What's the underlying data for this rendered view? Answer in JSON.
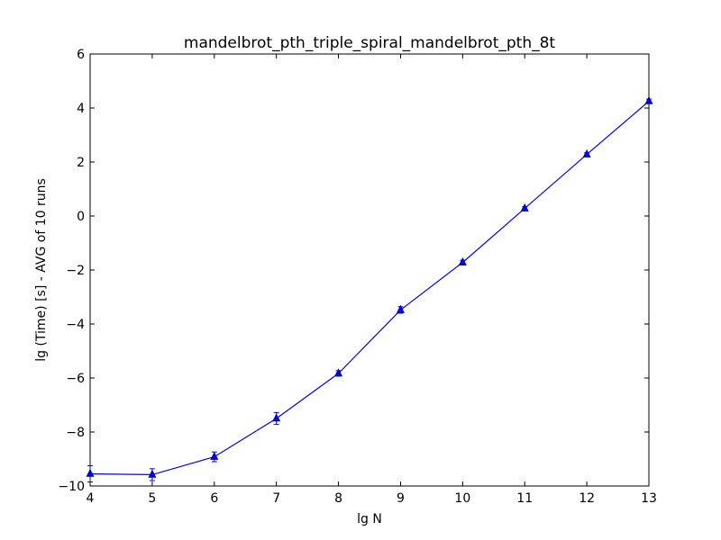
{
  "chart_data": {
    "type": "line",
    "title": "mandelbrot_pth_triple_spiral_mandelbrot_pth_8t",
    "xlabel": "lg N",
    "ylabel": "lg (Time) [s] - AVG of 10 runs",
    "xlim": [
      4,
      13
    ],
    "ylim": [
      -10,
      6
    ],
    "x_ticks": [
      4,
      5,
      6,
      7,
      8,
      9,
      10,
      11,
      12,
      13
    ],
    "y_ticks": [
      -10,
      -8,
      -6,
      -4,
      -2,
      0,
      2,
      4,
      6
    ],
    "x_tick_labels": [
      "4",
      "5",
      "6",
      "7",
      "8",
      "9",
      "10",
      "11",
      "12",
      "13"
    ],
    "y_tick_labels": [
      "−10",
      "−8",
      "−6",
      "−4",
      "−2",
      "0",
      "2",
      "4",
      "6"
    ],
    "grid": false,
    "series": [
      {
        "color": "#0000ff",
        "marker": "triangle-up",
        "x": [
          4,
          5,
          6,
          7,
          8,
          9,
          10,
          11,
          12,
          13
        ],
        "y": [
          -9.55,
          -9.58,
          -8.92,
          -7.5,
          -5.83,
          -3.48,
          -1.72,
          0.28,
          2.28,
          4.25
        ],
        "err": [
          0.3,
          0.22,
          0.18,
          0.22,
          0.1,
          0.12,
          0.08,
          0.06,
          0.06,
          0.08
        ]
      }
    ]
  }
}
